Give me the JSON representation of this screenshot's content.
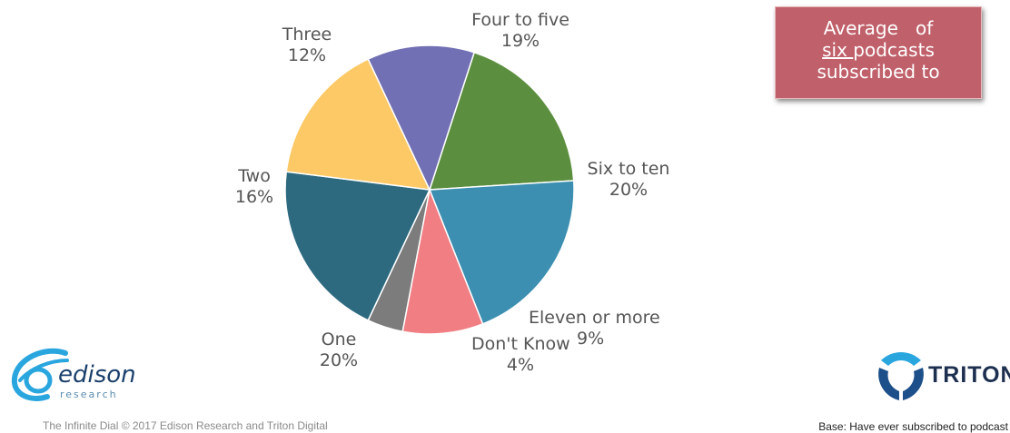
{
  "chart_data": {
    "type": "pie",
    "slices": [
      {
        "label": "Four to five",
        "percent_text": "19%",
        "value": 19,
        "color": "#5b8e3e"
      },
      {
        "label": "Six to ten",
        "percent_text": "20%",
        "value": 20,
        "color": "#3c8fb1"
      },
      {
        "label": "Eleven or more",
        "percent_text": "9%",
        "value": 9,
        "color": "#f07e83"
      },
      {
        "label": "Don't Know",
        "percent_text": "4%",
        "value": 4,
        "color": "#7c7c7c"
      },
      {
        "label": "One",
        "percent_text": "20%",
        "value": 20,
        "color": "#2d6a80"
      },
      {
        "label": "Two",
        "percent_text": "16%",
        "value": 16,
        "color": "#fcc966"
      },
      {
        "label": "Three",
        "percent_text": "12%",
        "value": 12,
        "color": "#7270b4"
      }
    ]
  },
  "callout": {
    "line1": "Average   of",
    "line2_underlined": "six ",
    "line2_rest": "podcasts",
    "line3": "subscribed to",
    "color": "#c0606a"
  },
  "logos": {
    "edison_wordmark": "edison",
    "edison_sub": "research",
    "triton_wordmark": "TRITON"
  },
  "footer": {
    "left": "The Infinite Dial  © 2017 Edison Research and Triton Digital",
    "right": "Base: Have ever subscribed to podcast"
  }
}
